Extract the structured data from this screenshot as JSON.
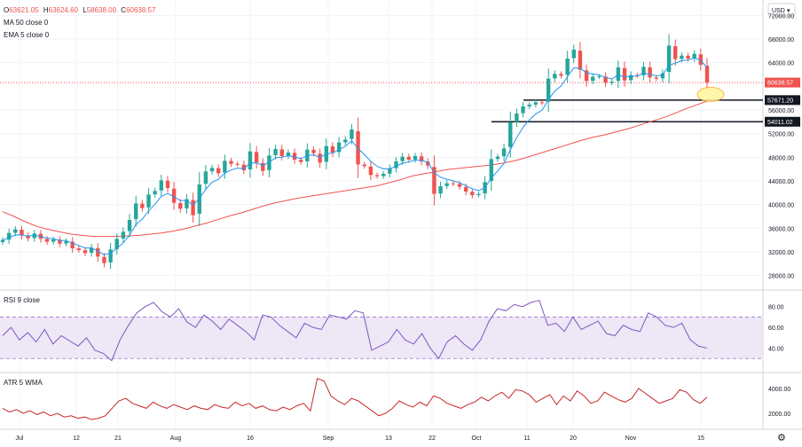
{
  "header": {
    "ohlc": [
      {
        "key": "O",
        "value": "63621.05"
      },
      {
        "key": "H",
        "value": "63624.60"
      },
      {
        "key": "L",
        "value": "58638.00"
      },
      {
        "key": "C",
        "value": "60638.57"
      }
    ],
    "indicators": [
      "MA 50 close 0",
      "EMA 5 close 0"
    ],
    "currency": "USD"
  },
  "colors": {
    "up": "#26a69a",
    "down": "#ef5350",
    "ma50": "#ef5350",
    "ema5": "#2196f3",
    "rsi": "#7e57c2",
    "rsi_band": "#ede7f6",
    "atr": "#c62828",
    "highlight": "#fff59d",
    "current_price_bg": "#ef5350",
    "level_bg": "#131722"
  },
  "price_axis": {
    "ticks": [
      "72000.00",
      "68000.00",
      "64000.00",
      "56000.00",
      "52000.00",
      "48000.00",
      "44000.00",
      "40000.00",
      "36000.00",
      "32000.00",
      "28000.00"
    ]
  },
  "price_labels": {
    "current": "60638.57",
    "level1": "57671.20",
    "level2": "54011.02"
  },
  "rsi_panel": {
    "title": "RSI 9 close",
    "ticks": [
      "80.00",
      "60.00",
      "40.00"
    ]
  },
  "atr_panel": {
    "title": "ATR 5 WMA",
    "ticks": [
      "4000.00",
      "2000.00"
    ]
  },
  "time_axis": {
    "labels": [
      "Jul",
      "12",
      "21",
      "Aug",
      "16",
      "Sep",
      "13",
      "22",
      "Oct",
      "11",
      "20",
      "Nov",
      "15"
    ]
  },
  "chart_data": {
    "type": "candlestick",
    "y_range": [
      26000,
      72500
    ],
    "current_price": 60638.57,
    "levels": [
      57671.2,
      54011.02
    ],
    "ohlc_last": {
      "open": 63621.05,
      "high": 63624.6,
      "low": 58638.0,
      "close": 60638.57
    },
    "close_series": [
      34000,
      35200,
      35800,
      34800,
      34300,
      35100,
      34200,
      33700,
      34100,
      33400,
      33800,
      32600,
      32300,
      31800,
      32700,
      31200,
      30100,
      32400,
      34200,
      35400,
      37400,
      40200,
      39400,
      41700,
      42300,
      44100,
      42800,
      40300,
      39300,
      40900,
      38200,
      43400,
      45600,
      46200,
      45300,
      47400,
      46900,
      46800,
      45800,
      49000,
      47100,
      45700,
      48300,
      49400,
      48200,
      48800,
      47600,
      47200,
      49300,
      48700,
      47100,
      49900,
      48800,
      50500,
      51000,
      52700,
      46800,
      46500,
      45000,
      44800,
      45200,
      46100,
      47300,
      48100,
      47600,
      48200,
      47300,
      46600,
      41800,
      43100,
      43600,
      43500,
      43000,
      42200,
      41600,
      41800,
      43800,
      47700,
      48100,
      49500,
      53900,
      55400,
      56600,
      56900,
      57300,
      57200,
      61300,
      62100,
      61800,
      64700,
      66200,
      62800,
      60900,
      61600,
      61700,
      60600,
      60800,
      63200,
      61000,
      61900,
      61800,
      63300,
      61500,
      61300,
      62200,
      66900,
      64600,
      65200,
      64700,
      65500,
      63621,
      60639
    ],
    "ma50_series": [
      38800,
      38000,
      37100,
      36300,
      35800,
      35400,
      35000,
      34800,
      34600,
      34600,
      34600,
      34700,
      34800,
      35000,
      35200,
      35500,
      35900,
      36400,
      36900,
      37500,
      38100,
      38600,
      39200,
      39800,
      40300,
      40700,
      41100,
      41400,
      41700,
      42000,
      42300,
      42600,
      42900,
      43200,
      43700,
      44200,
      44800,
      45200,
      45500,
      45900,
      46100,
      46300,
      46500,
      46700,
      47000,
      47400,
      47900,
      48500,
      49100,
      49700,
      50300,
      50900,
      51400,
      51800,
      52300,
      52800,
      53400,
      54000,
      54600,
      55300,
      56100,
      56800,
      57500
    ],
    "rsi": {
      "range": [
        20,
        90
      ],
      "band": [
        30,
        70
      ]
    },
    "rsi_series": [
      52,
      60,
      48,
      55,
      46,
      58,
      44,
      52,
      47,
      42,
      50,
      38,
      35,
      28,
      48,
      62,
      74,
      80,
      84,
      75,
      70,
      78,
      65,
      60,
      72,
      66,
      58,
      68,
      62,
      56,
      48,
      72,
      70,
      62,
      56,
      50,
      64,
      60,
      58,
      72,
      70,
      68,
      76,
      74,
      38,
      42,
      46,
      58,
      48,
      44,
      54,
      40,
      30,
      46,
      52,
      44,
      38,
      48,
      66,
      78,
      76,
      82,
      80,
      84,
      86,
      62,
      64,
      56,
      70,
      58,
      62,
      66,
      54,
      52,
      62,
      58,
      56,
      74,
      70,
      62,
      60,
      64,
      48,
      42,
      40
    ],
    "atr": {
      "range": [
        1000,
        5000
      ]
    },
    "atr_series": [
      2400,
      2100,
      2300,
      2000,
      2200,
      1900,
      2100,
      1800,
      2000,
      1700,
      1800,
      1600,
      1700,
      1500,
      1600,
      1800,
      2400,
      3000,
      3200,
      2800,
      2600,
      2400,
      2900,
      2600,
      2400,
      2700,
      2500,
      2300,
      2600,
      2400,
      2300,
      2700,
      2500,
      2400,
      2900,
      2600,
      2800,
      2400,
      2600,
      2300,
      2200,
      2500,
      2300,
      2600,
      2800,
      2200,
      4800,
      4600,
      3400,
      3000,
      2700,
      3200,
      3000,
      2600,
      2200,
      1800,
      2000,
      2400,
      3000,
      2700,
      2500,
      2900,
      2600,
      3400,
      3200,
      2800,
      2600,
      2400,
      2700,
      2900,
      3300,
      3000,
      3400,
      3700,
      3200,
      3900,
      3800,
      3500,
      2900,
      3200,
      3500,
      2700,
      3400,
      3000,
      3800,
      3400,
      2800,
      3000,
      3700,
      3400,
      3100,
      2900,
      3200,
      4000,
      3600,
      3200,
      2800,
      3000,
      3200,
      3900,
      3700,
      3100,
      2800,
      3300
    ],
    "time_ticks": [
      "Jul",
      "12",
      "21",
      "Aug",
      "16",
      "Sep",
      "13",
      "22",
      "Oct",
      "11",
      "20",
      "Nov",
      "15"
    ]
  }
}
